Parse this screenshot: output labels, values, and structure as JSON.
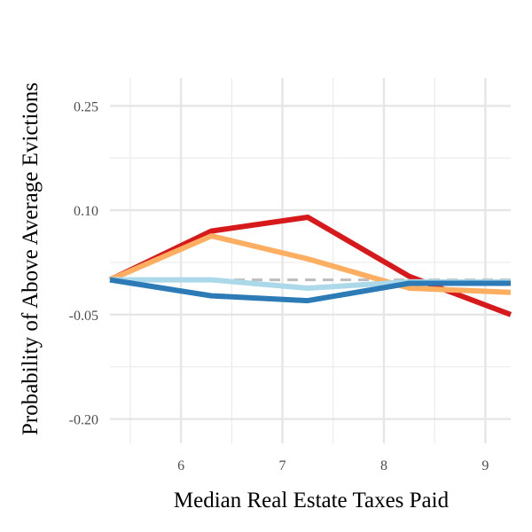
{
  "chart_data": {
    "type": "line",
    "title": "",
    "xlabel": "Median Real Estate Taxes Paid",
    "ylabel": "Probability of Above Average Evictions",
    "xlim": [
      5.3,
      9.25
    ],
    "ylim": [
      -0.235,
      0.29
    ],
    "x_ticks": [
      6,
      7,
      8,
      9
    ],
    "x_tick_labels": [
      "6",
      "7",
      "8",
      "9"
    ],
    "y_ticks": [
      -0.2,
      -0.05,
      0.1,
      0.25
    ],
    "y_tick_labels": [
      "-0.20",
      "-0.05",
      "0.10",
      "0.25"
    ],
    "grid": true,
    "legend": "none",
    "reference_line": {
      "y": 0,
      "style": "dashed",
      "color": "#bdbdbd"
    },
    "x": [
      5.3,
      6.3,
      7.25,
      8.25,
      9.25
    ],
    "series": [
      {
        "color": "#d7191c",
        "values": [
          0.0,
          0.07,
          0.09,
          0.005,
          -0.05
        ]
      },
      {
        "color": "#fdae61",
        "values": [
          0.0,
          0.063,
          0.03,
          -0.012,
          -0.018
        ]
      },
      {
        "color": "#abd9e9",
        "values": [
          0.0,
          0.0,
          -0.012,
          -0.003,
          -0.003
        ]
      },
      {
        "color": "#2c7bb6",
        "values": [
          0.0,
          -0.023,
          -0.03,
          -0.005,
          -0.005
        ]
      }
    ]
  }
}
